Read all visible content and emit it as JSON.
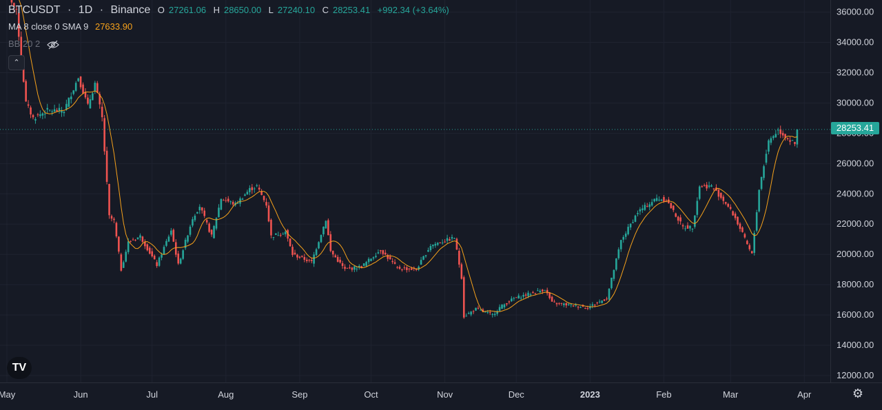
{
  "legend": {
    "symbol": "BTCUSDT",
    "interval": "1D",
    "exchange": "Binance",
    "open_label": "O",
    "open": "27261.06",
    "high_label": "H",
    "high": "28650.00",
    "low_label": "L",
    "low": "27240.10",
    "close_label": "C",
    "close": "28253.41",
    "change": "+992.34 (+3.64%)",
    "ma_label": "MA 8 close 0 SMA 9",
    "ma_value": "27633.90",
    "bb_label": "BB 20 2"
  },
  "collapse_icon": "chevron-up-icon",
  "last_price_tag": "28253.41",
  "colors": {
    "up": "#26a69a",
    "down": "#ef5350",
    "ma": "#f7a21b",
    "background": "#161a25",
    "grid": "#1f2330"
  },
  "chart_data": {
    "type": "candlestick",
    "symbol": "BTCUSDT",
    "x_ticks": [
      "May",
      "Jun",
      "Jul",
      "Aug",
      "Sep",
      "Oct",
      "Nov",
      "Dec",
      "2023",
      "Feb",
      "Mar",
      "Apr"
    ],
    "y_ticks": [
      "36000.00",
      "34000.00",
      "32000.00",
      "30000.00",
      "28000.00",
      "26000.00",
      "24000.00",
      "22000.00",
      "20000.00",
      "18000.00",
      "16000.00",
      "14000.00",
      "12000.00"
    ],
    "ylim": [
      11500,
      36800
    ],
    "grid": true,
    "last_price": 28253.41,
    "series": [
      {
        "name": "BTCUSDT",
        "anchors": [
          [
            "2022-04-29",
            38500
          ],
          [
            "2022-05-01",
            37500
          ],
          [
            "2022-05-05",
            36000
          ],
          [
            "2022-05-09",
            30000
          ],
          [
            "2022-05-12",
            29000
          ],
          [
            "2022-05-18",
            29500
          ],
          [
            "2022-05-25",
            29500
          ],
          [
            "2022-05-31",
            31700
          ],
          [
            "2022-06-04",
            29800
          ],
          [
            "2022-06-07",
            31300
          ],
          [
            "2022-06-10",
            29000
          ],
          [
            "2022-06-13",
            22500
          ],
          [
            "2022-06-15",
            22200
          ],
          [
            "2022-06-18",
            19000
          ],
          [
            "2022-06-21",
            20800
          ],
          [
            "2022-06-26",
            21200
          ],
          [
            "2022-07-03",
            19300
          ],
          [
            "2022-07-09",
            21600
          ],
          [
            "2022-07-12",
            19300
          ],
          [
            "2022-07-18",
            22400
          ],
          [
            "2022-07-21",
            23200
          ],
          [
            "2022-07-26",
            21200
          ],
          [
            "2022-07-30",
            23700
          ],
          [
            "2022-08-05",
            23300
          ],
          [
            "2022-08-11",
            24300
          ],
          [
            "2022-08-14",
            24500
          ],
          [
            "2022-08-18",
            23300
          ],
          [
            "2022-08-20",
            21200
          ],
          [
            "2022-08-26",
            21500
          ],
          [
            "2022-08-29",
            20000
          ],
          [
            "2022-09-06",
            19500
          ],
          [
            "2022-09-12",
            22300
          ],
          [
            "2022-09-14",
            20200
          ],
          [
            "2022-09-20",
            19000
          ],
          [
            "2022-09-27",
            19200
          ],
          [
            "2022-10-05",
            20300
          ],
          [
            "2022-10-12",
            19100
          ],
          [
            "2022-10-20",
            19000
          ],
          [
            "2022-10-26",
            20600
          ],
          [
            "2022-11-05",
            21100
          ],
          [
            "2022-11-08",
            18500
          ],
          [
            "2022-11-09",
            15900
          ],
          [
            "2022-11-14",
            16400
          ],
          [
            "2022-11-21",
            16000
          ],
          [
            "2022-11-24",
            16500
          ],
          [
            "2022-11-30",
            17100
          ],
          [
            "2022-12-13",
            17700
          ],
          [
            "2022-12-16",
            16800
          ],
          [
            "2022-12-31",
            16500
          ],
          [
            "2023-01-08",
            17100
          ],
          [
            "2023-01-14",
            20900
          ],
          [
            "2023-01-21",
            22800
          ],
          [
            "2023-01-29",
            23700
          ],
          [
            "2023-02-02",
            23600
          ],
          [
            "2023-02-09",
            21800
          ],
          [
            "2023-02-13",
            21800
          ],
          [
            "2023-02-16",
            24500
          ],
          [
            "2023-02-21",
            24500
          ],
          [
            "2023-02-27",
            23400
          ],
          [
            "2023-03-03",
            22400
          ],
          [
            "2023-03-09",
            20300
          ],
          [
            "2023-03-10",
            20000
          ],
          [
            "2023-03-13",
            24300
          ],
          [
            "2023-03-17",
            27500
          ],
          [
            "2023-03-21",
            28200
          ],
          [
            "2023-03-28",
            27261.06
          ],
          [
            "2023-03-29",
            28253.41
          ]
        ]
      },
      {
        "name": "MA 8 close 0 SMA 9",
        "value": 27633.9
      }
    ]
  }
}
